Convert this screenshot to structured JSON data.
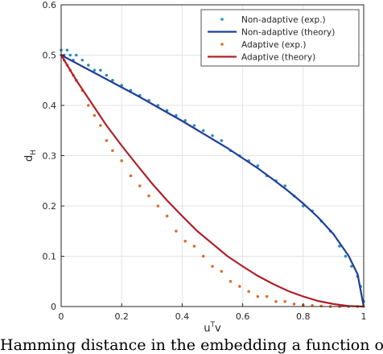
{
  "chart_data": {
    "type": "scatter",
    "xlabel": "u",
    "xlabel_sup": "T",
    "xlabel_tail": "v",
    "ylabel": "d",
    "ylabel_sub": "H",
    "xlim": [
      0,
      1
    ],
    "ylim": [
      0,
      0.6
    ],
    "xticks": [
      0,
      0.2,
      0.4,
      0.6,
      0.8,
      1
    ],
    "xtick_labels": [
      "0",
      "0.2",
      "0.4",
      "0.6",
      "0.8",
      "1"
    ],
    "yticks": [
      0,
      0.1,
      0.2,
      0.3,
      0.4,
      0.5,
      0.6
    ],
    "ytick_labels": [
      "0",
      "0.1",
      "0.2",
      "0.3",
      "0.4",
      "0.5",
      "0.6"
    ],
    "grid": true,
    "legend_position": "top-right",
    "series": [
      {
        "name": "Non-adaptive (exp.)",
        "kind": "scatter",
        "color": "#2b8ac6",
        "x": [
          0.0,
          0.01,
          0.02,
          0.03,
          0.04,
          0.05,
          0.07,
          0.09,
          0.11,
          0.13,
          0.15,
          0.17,
          0.2,
          0.23,
          0.26,
          0.29,
          0.32,
          0.35,
          0.38,
          0.41,
          0.44,
          0.47,
          0.5,
          0.53,
          0.56,
          0.59,
          0.62,
          0.65,
          0.68,
          0.71,
          0.74,
          0.77,
          0.8,
          0.83,
          0.86,
          0.89,
          0.92,
          0.94,
          0.96,
          0.98,
          0.99,
          1.0
        ],
        "y": [
          0.51,
          0.5,
          0.51,
          0.5,
          0.49,
          0.5,
          0.49,
          0.48,
          0.47,
          0.47,
          0.46,
          0.45,
          0.44,
          0.43,
          0.42,
          0.41,
          0.4,
          0.39,
          0.38,
          0.37,
          0.36,
          0.35,
          0.34,
          0.33,
          0.31,
          0.3,
          0.29,
          0.28,
          0.26,
          0.25,
          0.24,
          0.22,
          0.2,
          0.19,
          0.17,
          0.15,
          0.12,
          0.1,
          0.08,
          0.06,
          0.04,
          0.01
        ]
      },
      {
        "name": "Non-adaptive (theory)",
        "kind": "line",
        "color": "#1f3f99",
        "x": [
          0.0,
          0.05,
          0.1,
          0.15,
          0.2,
          0.25,
          0.3,
          0.35,
          0.4,
          0.45,
          0.5,
          0.55,
          0.6,
          0.65,
          0.7,
          0.75,
          0.8,
          0.85,
          0.9,
          0.95,
          0.98,
          1.0
        ],
        "y": [
          0.5,
          0.484,
          0.468,
          0.452,
          0.436,
          0.42,
          0.403,
          0.386,
          0.369,
          0.351,
          0.333,
          0.315,
          0.295,
          0.275,
          0.253,
          0.23,
          0.205,
          0.177,
          0.144,
          0.101,
          0.064,
          0.0
        ]
      },
      {
        "name": "Adaptive (exp.)",
        "kind": "scatter",
        "color": "#e06a2c",
        "x": [
          0.0,
          0.01,
          0.02,
          0.03,
          0.04,
          0.05,
          0.07,
          0.09,
          0.11,
          0.13,
          0.15,
          0.17,
          0.2,
          0.23,
          0.26,
          0.29,
          0.32,
          0.35,
          0.38,
          0.41,
          0.44,
          0.47,
          0.5,
          0.53,
          0.56,
          0.59,
          0.62,
          0.65,
          0.68,
          0.71,
          0.74,
          0.77,
          0.8,
          0.83,
          0.86,
          0.89,
          0.92,
          0.95,
          0.98,
          1.0
        ],
        "y": [
          0.5,
          0.49,
          0.48,
          0.47,
          0.46,
          0.45,
          0.43,
          0.4,
          0.38,
          0.36,
          0.33,
          0.31,
          0.29,
          0.26,
          0.24,
          0.22,
          0.2,
          0.18,
          0.15,
          0.13,
          0.12,
          0.1,
          0.08,
          0.07,
          0.05,
          0.04,
          0.03,
          0.02,
          0.02,
          0.01,
          0.01,
          0.005,
          0.003,
          0.002,
          0.001,
          0.0,
          0.0,
          0.0,
          0.0,
          0.0
        ]
      },
      {
        "name": "Adaptive (theory)",
        "kind": "line",
        "color": "#b0202a",
        "x": [
          0.0,
          0.05,
          0.1,
          0.15,
          0.2,
          0.25,
          0.3,
          0.35,
          0.4,
          0.45,
          0.5,
          0.55,
          0.6,
          0.65,
          0.7,
          0.75,
          0.8,
          0.85,
          0.9,
          0.95,
          1.0
        ],
        "y": [
          0.5,
          0.45,
          0.405,
          0.36,
          0.32,
          0.282,
          0.245,
          0.211,
          0.18,
          0.15,
          0.125,
          0.1,
          0.08,
          0.061,
          0.045,
          0.031,
          0.02,
          0.011,
          0.005,
          0.001,
          0.0
        ]
      }
    ]
  },
  "caption": "Hamming distance in the embedding a function of"
}
